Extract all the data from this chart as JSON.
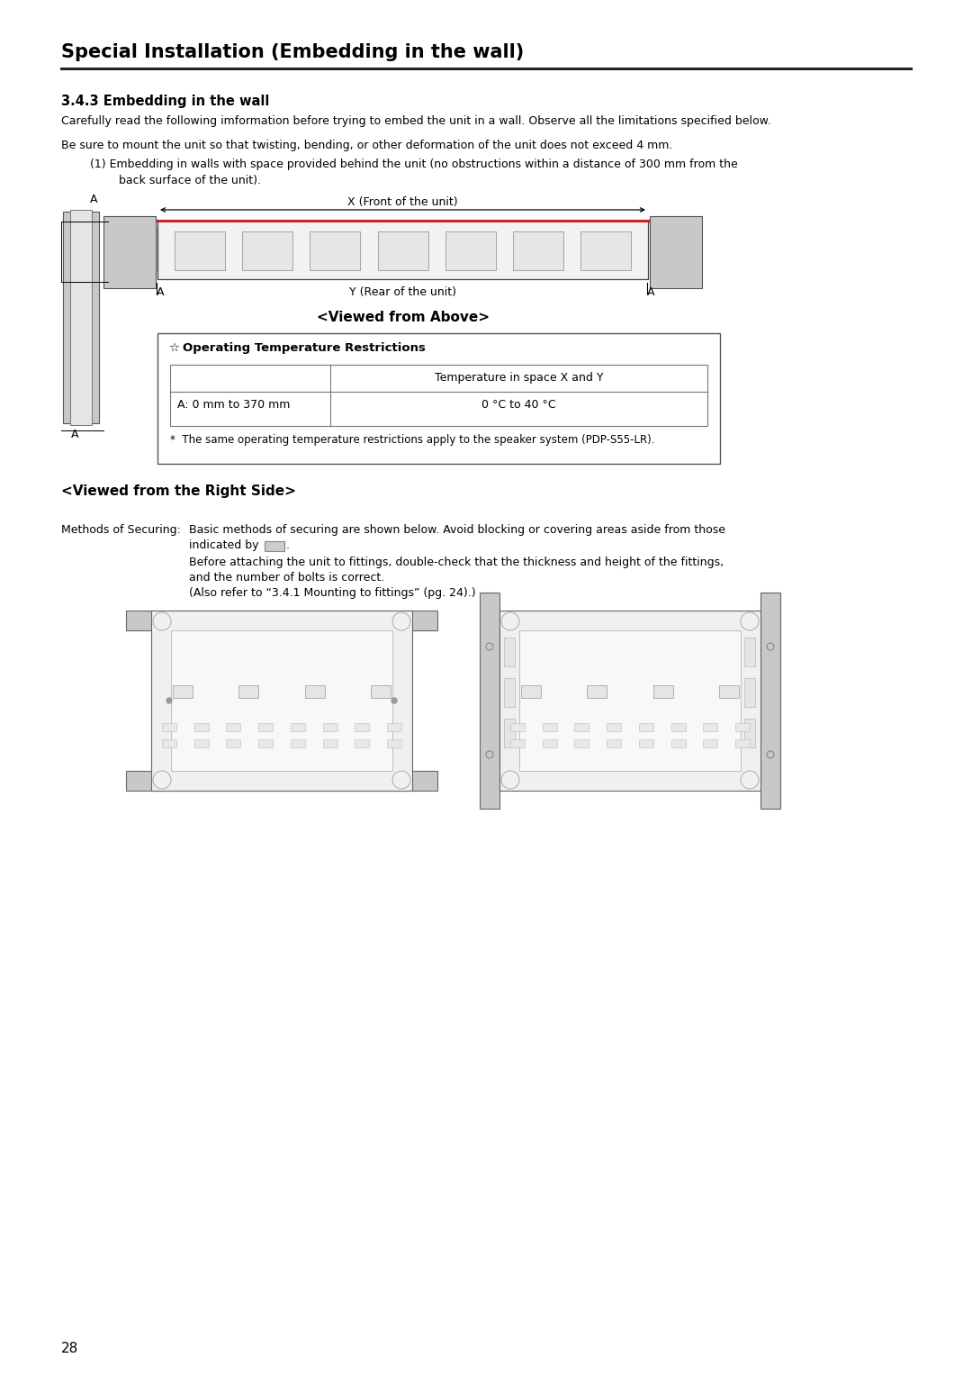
{
  "title": "Special Installation (Embedding in the wall)",
  "section_title": "3.4.3 Embedding in the wall",
  "para1": "Carefully read the following imformation before trying to embed the unit in a wall. Observe all the limitations specified below.",
  "para2": "Be sure to mount the unit so that twisting, bending, or other deformation of the unit does not exceed 4 mm.",
  "para3_1": "(1) Embedding in walls with space provided behind the unit (no obstructions within a distance of 300 mm from the",
  "para3_2": "    back surface of the unit).",
  "viewed_above": "<Viewed from Above>",
  "x_label": "X (Front of the unit)",
  "y_label": "Y (Rear of the unit)",
  "a_label": "A",
  "table_title": "Operating Temperature Restrictions",
  "table_col1": "Temperature in space X and Y",
  "table_row1_label": "A: 0 mm to 370 mm",
  "table_row1_val": "0 °C to 40 °C",
  "table_note": "*  The same operating temperature restrictions apply to the speaker system (PDP-S55-LR).",
  "viewed_right": "<Viewed from the Right Side>",
  "methods_label": "Methods of Securing:",
  "methods_text1a": "Basic methods of securing are shown below. Avoid blocking or covering areas aside from those",
  "methods_text1b": "indicated by",
  "methods_text1c": ".",
  "methods_text2a": "Before attaching the unit to fittings, double-check that the thickness and height of the fittings,",
  "methods_text2b": "and the number of bolts is correct.",
  "methods_text3": "(Also refer to “3.4.1 Mounting to fittings” (pg. 24).)",
  "page_number": "28",
  "bg_color": "#ffffff",
  "text_color": "#000000"
}
